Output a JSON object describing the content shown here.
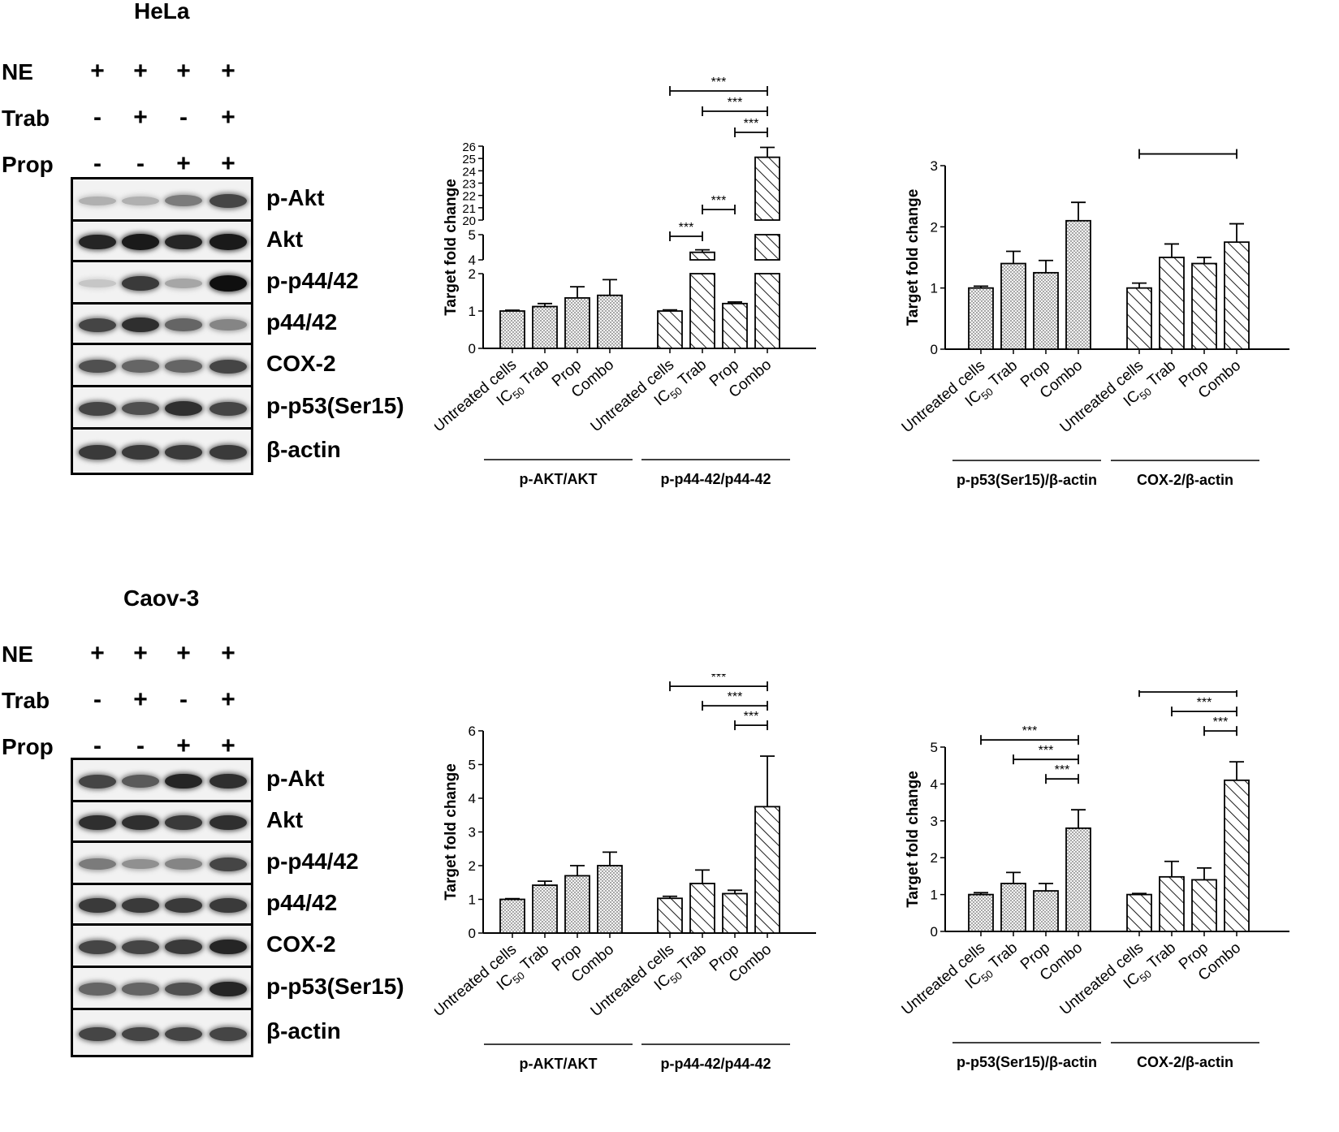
{
  "panels": [
    {
      "cell_line": "HeLa",
      "treatments": [
        {
          "label": "NE",
          "signs": [
            "+",
            "+",
            "+",
            "+"
          ]
        },
        {
          "label": "Trab",
          "signs": [
            "-",
            "+",
            "-",
            "+"
          ]
        },
        {
          "label": "Prop",
          "signs": [
            "-",
            "-",
            "+",
            "+"
          ]
        }
      ],
      "blot_bands": [
        {
          "label": "p-Akt",
          "intensity": [
            0.25,
            0.25,
            0.5,
            0.75
          ]
        },
        {
          "label": "Akt",
          "intensity": [
            0.9,
            0.95,
            0.9,
            0.95
          ]
        },
        {
          "label": "p-p44/42",
          "intensity": [
            0.15,
            0.8,
            0.3,
            1.0
          ]
        },
        {
          "label": "p44/42",
          "intensity": [
            0.75,
            0.85,
            0.6,
            0.45
          ]
        },
        {
          "label": "COX-2",
          "intensity": [
            0.7,
            0.6,
            0.6,
            0.75
          ]
        },
        {
          "label": "p-p53(Ser15)",
          "intensity": [
            0.75,
            0.7,
            0.85,
            0.75
          ]
        },
        {
          "label": "β-actin",
          "intensity": [
            0.8,
            0.8,
            0.8,
            0.8
          ]
        }
      ]
    },
    {
      "cell_line": "Caov-3",
      "treatments": [
        {
          "label": "NE",
          "signs": [
            "+",
            "+",
            "+",
            "+"
          ]
        },
        {
          "label": "Trab",
          "signs": [
            "-",
            "+",
            "-",
            "+"
          ]
        },
        {
          "label": "Prop",
          "signs": [
            "-",
            "-",
            "+",
            "+"
          ]
        }
      ],
      "blot_bands": [
        {
          "label": "p-Akt",
          "intensity": [
            0.75,
            0.65,
            0.9,
            0.85
          ]
        },
        {
          "label": "Akt",
          "intensity": [
            0.85,
            0.85,
            0.8,
            0.85
          ]
        },
        {
          "label": "p-p44/42",
          "intensity": [
            0.5,
            0.4,
            0.45,
            0.75
          ]
        },
        {
          "label": "p44/42",
          "intensity": [
            0.8,
            0.8,
            0.8,
            0.8
          ]
        },
        {
          "label": "COX-2",
          "intensity": [
            0.75,
            0.75,
            0.8,
            0.9
          ]
        },
        {
          "label": "p-p53(Ser15)",
          "intensity": [
            0.6,
            0.6,
            0.7,
            0.9
          ]
        },
        {
          "label": "β-actin",
          "intensity": [
            0.75,
            0.75,
            0.75,
            0.75
          ]
        }
      ]
    }
  ],
  "chart_data": [
    {
      "type": "bar",
      "ylabel": "Target fold change",
      "y_break": true,
      "y_segments": [
        {
          "range": [
            0,
            2
          ],
          "ticks": [
            "0",
            "1",
            "2"
          ]
        },
        {
          "range": [
            4,
            5
          ],
          "ticks": [
            "4",
            "5"
          ]
        },
        {
          "range": [
            20,
            26
          ],
          "ticks": [
            "20",
            "21",
            "22",
            "23",
            "24",
            "25",
            "26"
          ]
        }
      ],
      "categories": [
        "Untreated cells",
        "IC50 Trab",
        "Prop",
        "Combo"
      ],
      "category_label_parts": [
        [
          "Untreated cells",
          ""
        ],
        [
          "IC",
          "50",
          " Trab"
        ],
        [
          "Prop",
          ""
        ],
        [
          "Combo",
          ""
        ]
      ],
      "groups": [
        {
          "name": "p-AKT/AKT",
          "pattern": "dots",
          "values": [
            1.0,
            1.12,
            1.35,
            1.42
          ],
          "errors": [
            0.02,
            0.08,
            0.3,
            0.42
          ]
        },
        {
          "name": "p-p44-42/p44-42",
          "pattern": "hatch",
          "values": [
            1.0,
            4.3,
            1.2,
            25.1
          ],
          "errors": [
            0.03,
            0.1,
            0.04,
            0.8
          ]
        }
      ],
      "significance": [
        {
          "group": 1,
          "from": 0,
          "to": 3,
          "label": "***"
        },
        {
          "group": 1,
          "from": 1,
          "to": 3,
          "label": "***"
        },
        {
          "group": 1,
          "from": 2,
          "to": 3,
          "label": "***"
        },
        {
          "group": 1,
          "from": 0,
          "to": 1,
          "label": "***"
        },
        {
          "group": 1,
          "from": 1,
          "to": 2,
          "label": "***"
        }
      ]
    },
    {
      "type": "bar",
      "ylabel": "Target fold change",
      "ylim": [
        0,
        3
      ],
      "yticks": [
        "0",
        "1",
        "2",
        "3"
      ],
      "categories": [
        "Untreated cells",
        "IC50 Trab",
        "Prop",
        "Combo"
      ],
      "category_label_parts": [
        [
          "Untreated cells",
          ""
        ],
        [
          "IC",
          "50",
          " Trab"
        ],
        [
          "Prop",
          ""
        ],
        [
          "Combo",
          ""
        ]
      ],
      "groups": [
        {
          "name": "p-p53(Ser15)/β-actin",
          "pattern": "dots",
          "values": [
            1.0,
            1.4,
            1.25,
            2.1
          ],
          "errors": [
            0.03,
            0.2,
            0.2,
            0.3
          ]
        },
        {
          "name": "COX-2/β-actin",
          "pattern": "hatch",
          "values": [
            1.0,
            1.5,
            1.4,
            1.75
          ],
          "errors": [
            0.08,
            0.22,
            0.1,
            0.3
          ]
        }
      ],
      "significance": [
        {
          "group": 0,
          "from": 0,
          "to": 3,
          "label": "**"
        },
        {
          "group": 1,
          "from": 0,
          "to": 3,
          "label": "*"
        }
      ]
    },
    {
      "type": "bar",
      "ylabel": "Target fold change",
      "ylim": [
        0,
        6
      ],
      "yticks": [
        "0",
        "1",
        "2",
        "3",
        "4",
        "5",
        "6"
      ],
      "categories": [
        "Untreated cells",
        "IC50 Trab",
        "Prop",
        "Combo"
      ],
      "category_label_parts": [
        [
          "Untreated cells",
          ""
        ],
        [
          "IC",
          "50",
          " Trab"
        ],
        [
          "Prop",
          ""
        ],
        [
          "Combo",
          ""
        ]
      ],
      "groups": [
        {
          "name": "p-AKT/AKT",
          "pattern": "dots",
          "values": [
            1.0,
            1.42,
            1.7,
            2.0
          ],
          "errors": [
            0.02,
            0.12,
            0.3,
            0.4
          ]
        },
        {
          "name": "p-p44-42/p44-42",
          "pattern": "hatch",
          "values": [
            1.03,
            1.47,
            1.17,
            3.75
          ],
          "errors": [
            0.06,
            0.4,
            0.1,
            1.5
          ]
        }
      ],
      "significance": [
        {
          "group": 1,
          "from": 0,
          "to": 3,
          "label": "***"
        },
        {
          "group": 1,
          "from": 1,
          "to": 3,
          "label": "***"
        },
        {
          "group": 1,
          "from": 2,
          "to": 3,
          "label": "***"
        }
      ]
    },
    {
      "type": "bar",
      "ylabel": "Target fold change",
      "ylim": [
        0,
        5
      ],
      "yticks": [
        "0",
        "1",
        "2",
        "3",
        "4",
        "5"
      ],
      "categories": [
        "Untreated cells",
        "IC50 Trab",
        "Prop",
        "Combo"
      ],
      "category_label_parts": [
        [
          "Untreated cells",
          ""
        ],
        [
          "IC",
          "50",
          " Trab"
        ],
        [
          "Prop",
          ""
        ],
        [
          "Combo",
          ""
        ]
      ],
      "groups": [
        {
          "name": "p-p53(Ser15)/β-actin",
          "pattern": "dots",
          "values": [
            1.0,
            1.3,
            1.1,
            2.8
          ],
          "errors": [
            0.05,
            0.3,
            0.2,
            0.5
          ]
        },
        {
          "name": "COX-2/β-actin",
          "pattern": "hatch",
          "values": [
            1.0,
            1.48,
            1.4,
            4.1
          ],
          "errors": [
            0.03,
            0.42,
            0.32,
            0.5
          ]
        }
      ],
      "significance": [
        {
          "group": 0,
          "from": 0,
          "to": 3,
          "label": "***"
        },
        {
          "group": 0,
          "from": 1,
          "to": 3,
          "label": "***"
        },
        {
          "group": 0,
          "from": 2,
          "to": 3,
          "label": "***"
        },
        {
          "group": 1,
          "from": 0,
          "to": 3,
          "label": "***"
        },
        {
          "group": 1,
          "from": 1,
          "to": 3,
          "label": "***"
        },
        {
          "group": 1,
          "from": 2,
          "to": 3,
          "label": "***"
        }
      ]
    }
  ]
}
